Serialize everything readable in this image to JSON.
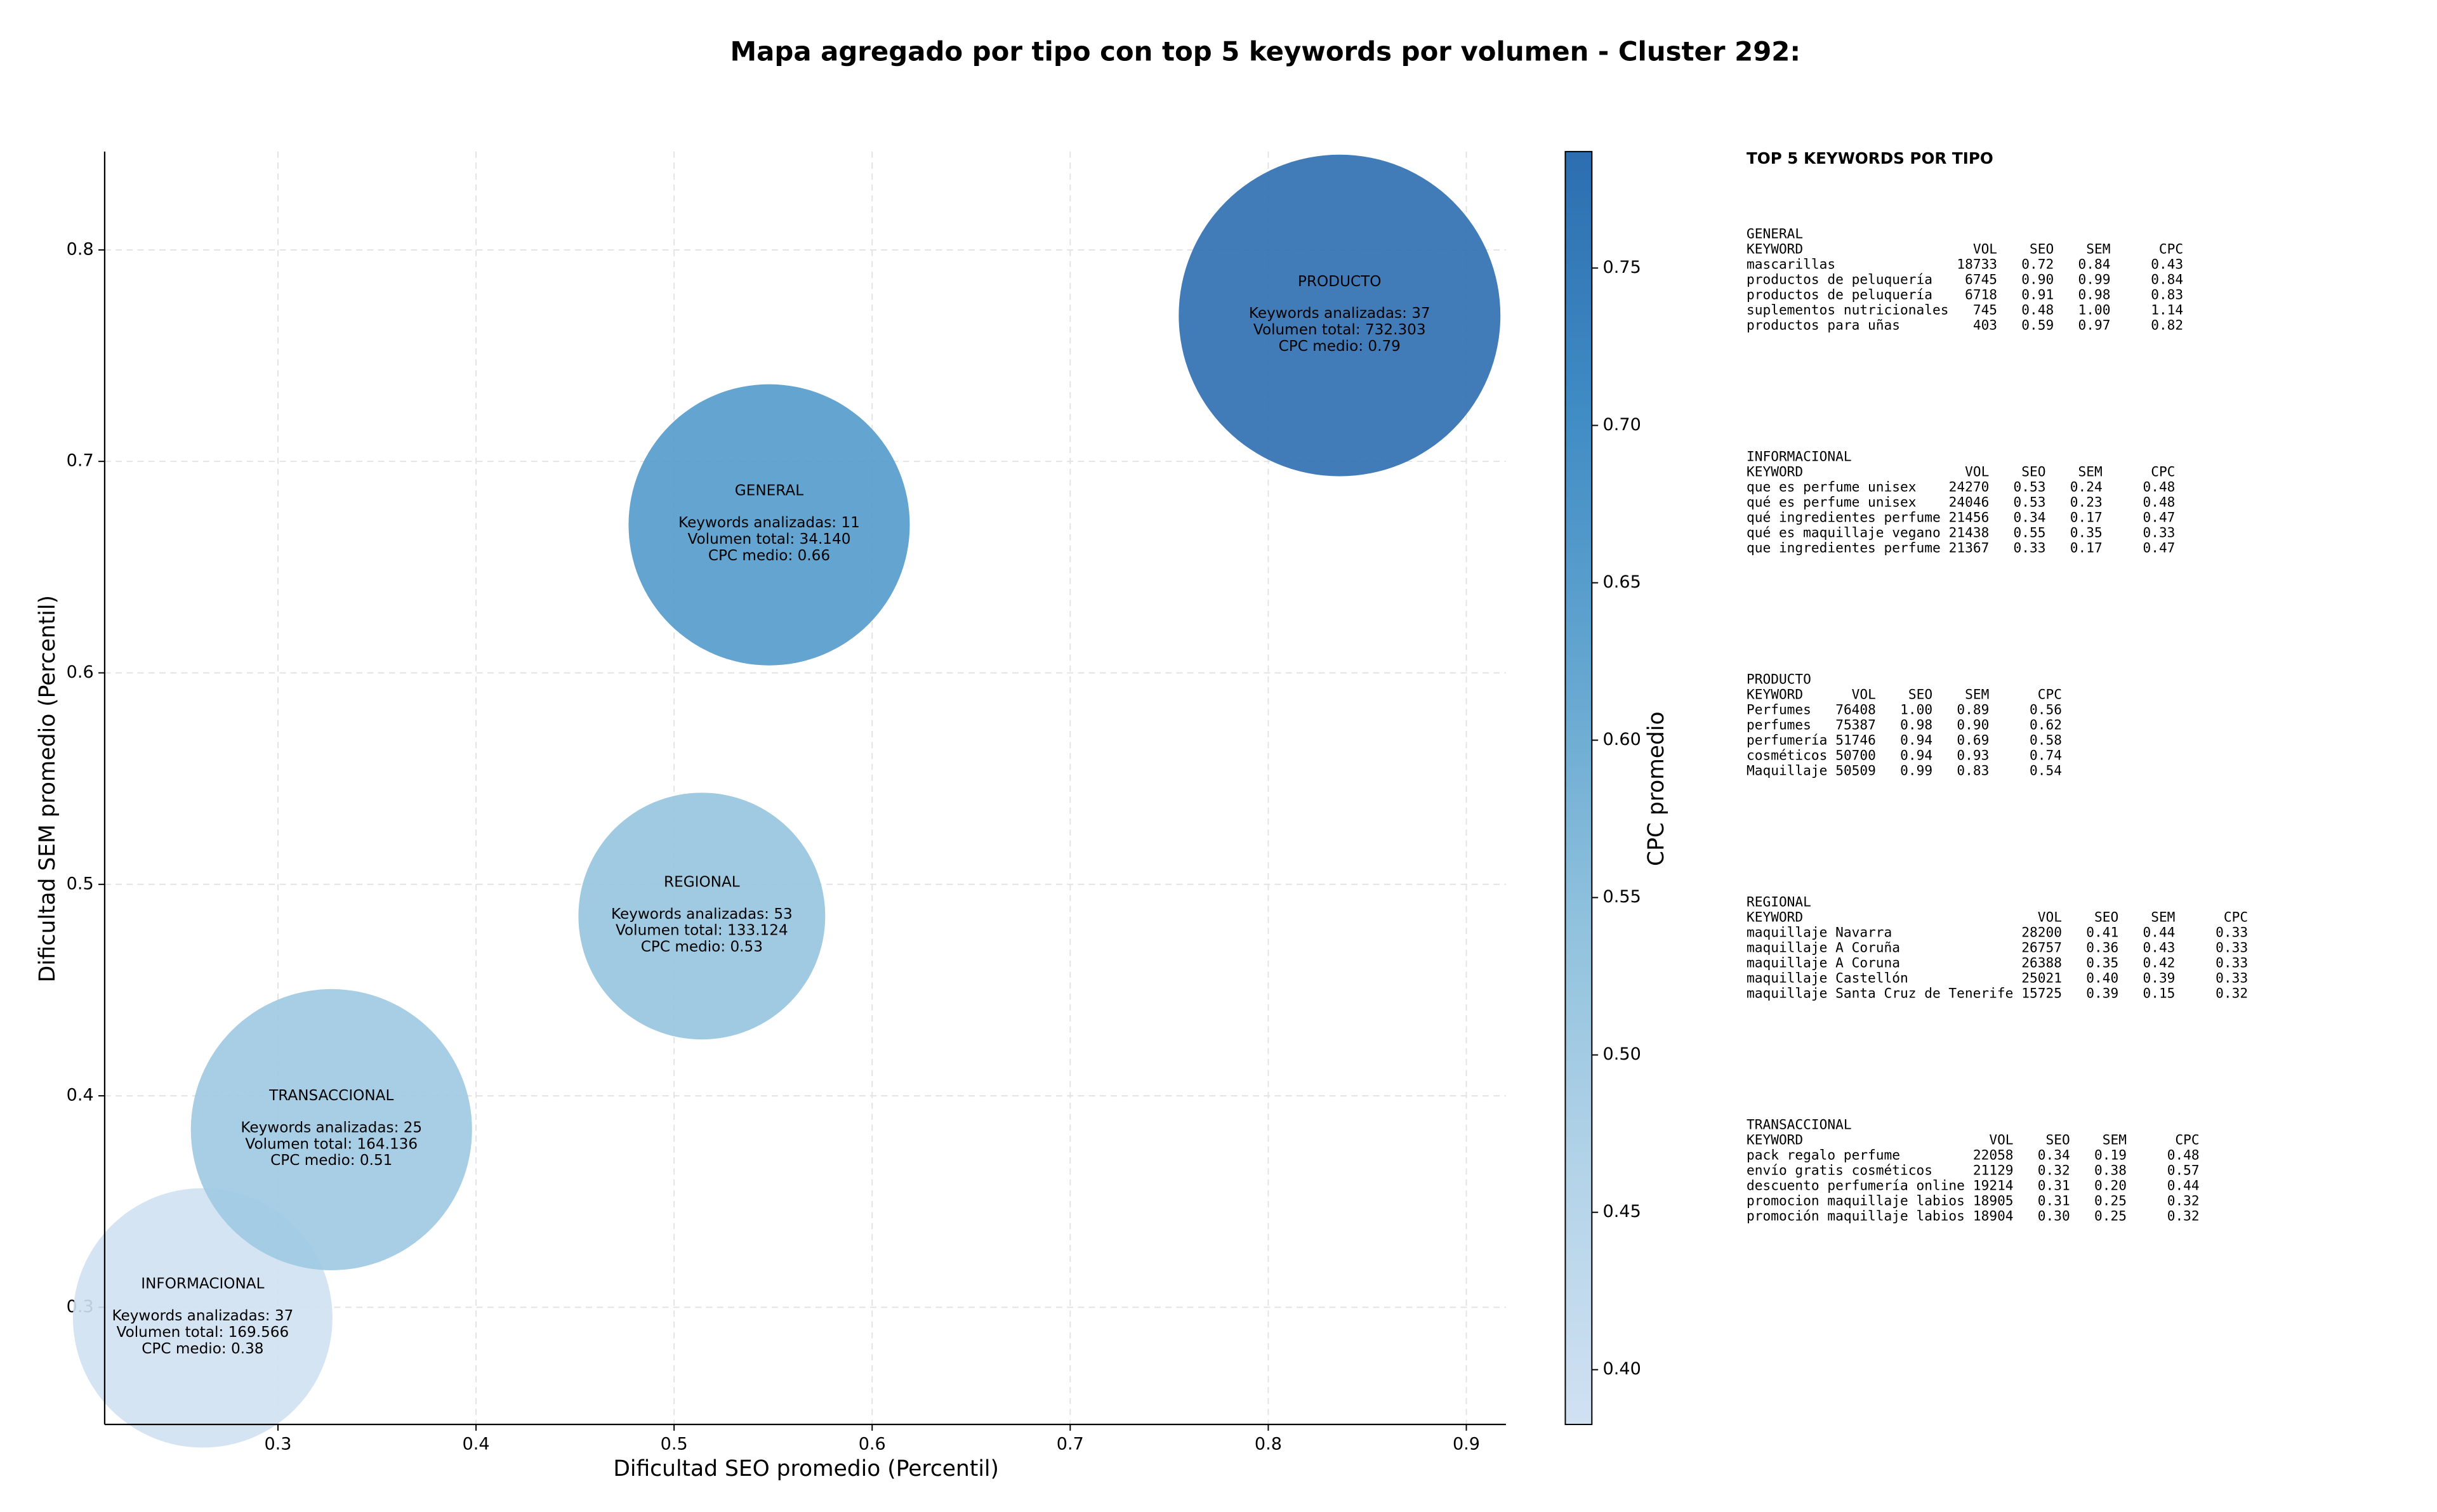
{
  "chart_data": {
    "type": "bubble",
    "title": "Mapa agregado por tipo con top 5 keywords por volumen - Cluster 292:",
    "xlabel": "Dificultad SEO promedio (Percentil)",
    "ylabel": "Dificultad SEM promedio (Percentil)",
    "xlim": [
      0.2125,
      0.92
    ],
    "ylim": [
      0.2446,
      0.8465
    ],
    "xticks": [
      0.3,
      0.4,
      0.5,
      0.6,
      0.7,
      0.8,
      0.9
    ],
    "yticks": [
      0.3,
      0.4,
      0.5,
      0.6,
      0.7,
      0.8
    ],
    "grid": true,
    "categories": [
      "INFORMACIONAL",
      "REGIONAL",
      "GENERAL",
      "TRANSACCIONAL",
      "PRODUCTO"
    ],
    "x": [
      0.262,
      0.514,
      0.548,
      0.327,
      0.836
    ],
    "values": [
      0.295,
      0.485,
      0.67,
      0.384,
      0.769
    ],
    "sizes": [
      6900,
      6240,
      8100,
      8100,
      10600
    ],
    "color_values": [
      0.38,
      0.53,
      0.66,
      0.51,
      0.79
    ],
    "annotations": [
      [
        "Keywords analizadas: 37",
        "Volumen total: 169.566",
        "CPC medio: 0.38"
      ],
      [
        "Keywords analizadas: 53",
        "Volumen total: 133.124",
        "CPC medio: 0.53"
      ],
      [
        "Keywords analizadas: 11",
        "Volumen total: 34.140",
        "CPC medio: 0.66"
      ],
      [
        "Keywords analizadas: 25",
        "Volumen total: 164.136",
        "CPC medio: 0.51"
      ],
      [
        "Keywords analizadas: 37",
        "Volumen total: 732.303",
        "CPC medio: 0.79"
      ]
    ],
    "colorbar": {
      "label": "CPC promedio",
      "lim": [
        0.3826,
        0.787
      ],
      "ticks": [
        {
          "value": 0.4,
          "label": "0.40"
        },
        {
          "value": 0.45,
          "label": "0.45"
        },
        {
          "value": 0.5,
          "label": "0.50"
        },
        {
          "value": 0.55,
          "label": "0.55"
        },
        {
          "value": 0.6,
          "label": "0.60"
        },
        {
          "value": 0.65,
          "label": "0.65"
        },
        {
          "value": 0.7,
          "label": "0.70"
        },
        {
          "value": 0.75,
          "label": "0.75"
        }
      ],
      "colormap": [
        "#d0e1f2",
        "#b3d3e8",
        "#8fc1dd",
        "#62a5d0",
        "#3f8bc4",
        "#2c6eb0"
      ]
    }
  },
  "panel": {
    "title": "TOP 5 KEYWORDS POR TIPO",
    "columns": [
      "KEYWORD",
      "VOL",
      "SEO",
      "SEM",
      "CPC"
    ],
    "sections": [
      {
        "name": "GENERAL",
        "rows": [
          [
            "mascarillas",
            "18733",
            "0.72",
            "0.84",
            "0.43"
          ],
          [
            "productos de peluquería",
            "6745",
            "0.90",
            "0.99",
            "0.84"
          ],
          [
            "productos de peluquería",
            "6718",
            "0.91",
            "0.98",
            "0.83"
          ],
          [
            "suplementos nutricionales",
            "745",
            "0.48",
            "1.00",
            "1.14"
          ],
          [
            "productos para uñas",
            "403",
            "0.59",
            "0.97",
            "0.82"
          ]
        ]
      },
      {
        "name": "INFORMACIONAL",
        "rows": [
          [
            "que es perfume unisex",
            "24270",
            "0.53",
            "0.24",
            "0.48"
          ],
          [
            "qué es perfume unisex",
            "24046",
            "0.53",
            "0.23",
            "0.48"
          ],
          [
            "qué ingredientes perfume",
            "21456",
            "0.34",
            "0.17",
            "0.47"
          ],
          [
            "qué es maquillaje vegano",
            "21438",
            "0.55",
            "0.35",
            "0.33"
          ],
          [
            "que ingredientes perfume",
            "21367",
            "0.33",
            "0.17",
            "0.47"
          ]
        ]
      },
      {
        "name": "PRODUCTO",
        "rows": [
          [
            "Perfumes",
            "76408",
            "1.00",
            "0.89",
            "0.56"
          ],
          [
            "perfumes",
            "75387",
            "0.98",
            "0.90",
            "0.62"
          ],
          [
            "perfumería",
            "51746",
            "0.94",
            "0.69",
            "0.58"
          ],
          [
            "cosméticos",
            "50700",
            "0.94",
            "0.93",
            "0.74"
          ],
          [
            "Maquillaje",
            "50509",
            "0.99",
            "0.83",
            "0.54"
          ]
        ]
      },
      {
        "name": "REGIONAL",
        "rows": [
          [
            "maquillaje Navarra",
            "28200",
            "0.41",
            "0.44",
            "0.33"
          ],
          [
            "maquillaje A Coruña",
            "26757",
            "0.36",
            "0.43",
            "0.33"
          ],
          [
            "maquillaje A Coruna",
            "26388",
            "0.35",
            "0.42",
            "0.33"
          ],
          [
            "maquillaje Castellón",
            "25021",
            "0.40",
            "0.39",
            "0.33"
          ],
          [
            "maquillaje Santa Cruz de Tenerife",
            "15725",
            "0.39",
            "0.15",
            "0.32"
          ]
        ]
      },
      {
        "name": "TRANSACCIONAL",
        "rows": [
          [
            "pack regalo perfume",
            "22058",
            "0.34",
            "0.19",
            "0.48"
          ],
          [
            "envío gratis cosméticos",
            "21129",
            "0.32",
            "0.38",
            "0.57"
          ],
          [
            "descuento perfumería online",
            "19214",
            "0.31",
            "0.20",
            "0.44"
          ],
          [
            "promocion maquillaje labios",
            "18905",
            "0.31",
            "0.25",
            "0.32"
          ],
          [
            "promoción maquillaje labios",
            "18904",
            "0.30",
            "0.25",
            "0.32"
          ]
        ]
      }
    ]
  }
}
